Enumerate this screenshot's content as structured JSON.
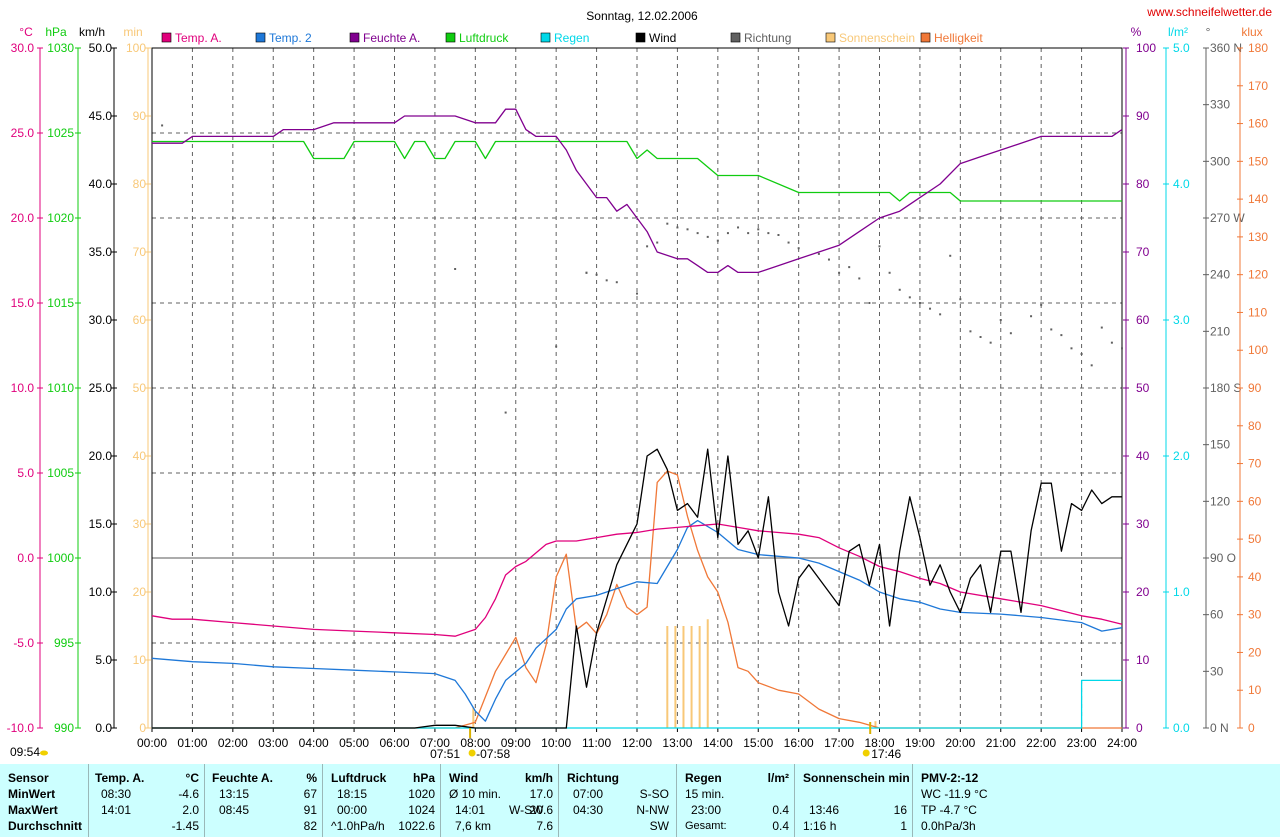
{
  "title": "Sonntag, 12.02.2006",
  "site": "www.schneifelwetter.de",
  "colors": {
    "temp": "#e0007c",
    "temp2": "#1e78d8",
    "humid": "#80008f",
    "press": "#10cc10",
    "rain": "#00d8e8",
    "wind": "#000000",
    "dir": "#606060",
    "sun": "#f8c878",
    "bright": "#f07838",
    "grid": "#606060",
    "axis": "#000000"
  },
  "units": {
    "temp": "°C",
    "press": "hPa",
    "wind": "km/h",
    "sunmin": "min",
    "humid": "%",
    "rain": "l/m²",
    "dir": "°",
    "bright": "klux"
  },
  "legend": [
    {
      "label": "Temp. A.",
      "color": "#e0007c"
    },
    {
      "label": "Temp. 2",
      "color": "#1e78d8"
    },
    {
      "label": "Feuchte A.",
      "color": "#80008f"
    },
    {
      "label": "Luftdruck",
      "color": "#10cc10"
    },
    {
      "label": "Regen",
      "color": "#00d8e8"
    },
    {
      "label": "Wind",
      "color": "#000000"
    },
    {
      "label": "Richtung",
      "color": "#606060"
    },
    {
      "label": "Sonnenschein",
      "color": "#f8c878"
    },
    {
      "label": "Helligkeit",
      "color": "#f07838"
    }
  ],
  "sunrise_label": "07:51",
  "sunset_label": "17:46",
  "sun_bar_label": "07:58",
  "time_label": "09:54",
  "chart_data": {
    "type": "line",
    "x_range": [
      0,
      24
    ],
    "x_tick_labels": [
      "00:00",
      "01:00",
      "02:00",
      "03:00",
      "04:00",
      "05:00",
      "06:00",
      "07:00",
      "08:00",
      "09:00",
      "10:00",
      "11:00",
      "12:00",
      "13:00",
      "14:00",
      "15:00",
      "16:00",
      "17:00",
      "18:00",
      "19:00",
      "20:00",
      "21:00",
      "22:00",
      "23:00",
      "24:00"
    ],
    "axes": {
      "temp": {
        "ticks": [
          "30.0",
          "25.0",
          "20.0",
          "15.0",
          "10.0",
          "5.0",
          "0.0",
          "-5.0",
          "-10.0"
        ],
        "range": [
          -10,
          30
        ]
      },
      "press": {
        "ticks": [
          "1030",
          "1025",
          "1020",
          "1015",
          "1010",
          "1005",
          "1000",
          "995",
          "990"
        ],
        "range": [
          990,
          1030
        ]
      },
      "wind": {
        "ticks": [
          "50.0",
          "45.0",
          "40.0",
          "35.0",
          "30.0",
          "25.0",
          "20.0",
          "15.0",
          "10.0",
          "5.0",
          "0.0"
        ],
        "range": [
          0,
          50
        ]
      },
      "sunmin": {
        "ticks": [
          "100",
          "90",
          "80",
          "70",
          "60",
          "50",
          "40",
          "30",
          "20",
          "10",
          "0"
        ],
        "range": [
          0,
          100
        ]
      },
      "humid": {
        "ticks": [
          "100",
          "90",
          "80",
          "70",
          "60",
          "50",
          "40",
          "30",
          "20",
          "10",
          "0"
        ],
        "range": [
          0,
          100
        ]
      },
      "rain": {
        "ticks": [
          "5.0",
          "4.0",
          "3.0",
          "2.0",
          "1.0",
          "0.0"
        ],
        "range": [
          0,
          5
        ]
      },
      "dir": {
        "ticks": [
          "360 N",
          "330",
          "300",
          "270 W",
          "240",
          "210",
          "180 S",
          "150",
          "120",
          "90  O",
          "60",
          "30",
          "0   N"
        ],
        "range": [
          0,
          360
        ]
      },
      "bright": {
        "ticks": [
          "180",
          "170",
          "160",
          "150",
          "140",
          "130",
          "120",
          "110",
          "100",
          "90",
          "80",
          "70",
          "60",
          "50",
          "40",
          "30",
          "20",
          "10",
          "0"
        ],
        "range": [
          0,
          180
        ]
      }
    },
    "series": [
      {
        "name": "Temp. A.",
        "axis": "temp",
        "x": [
          0,
          0.5,
          1,
          2,
          3,
          4,
          5,
          6,
          7,
          7.5,
          8,
          8.25,
          8.5,
          8.75,
          9,
          9.25,
          9.5,
          9.75,
          10,
          10.25,
          10.5,
          11,
          11.5,
          12,
          12.5,
          13,
          13.5,
          14,
          14.5,
          15,
          15.5,
          16,
          16.5,
          17,
          17.5,
          18,
          18.5,
          19,
          19.5,
          20,
          21,
          22,
          23,
          23.5,
          24
        ],
        "y": [
          -3.4,
          -3.6,
          -3.6,
          -3.8,
          -4.0,
          -4.2,
          -4.3,
          -4.4,
          -4.5,
          -4.6,
          -4.2,
          -3.5,
          -2.4,
          -1.0,
          -0.5,
          -0.2,
          0.3,
          0.8,
          1.0,
          1.0,
          1.0,
          1.2,
          1.4,
          1.5,
          1.7,
          1.8,
          1.9,
          2.0,
          1.8,
          1.6,
          1.5,
          1.4,
          1.2,
          0.6,
          0.1,
          -0.5,
          -0.8,
          -1.2,
          -1.5,
          -2.0,
          -2.4,
          -2.8,
          -3.4,
          -3.6,
          -3.9
        ]
      },
      {
        "name": "Temp. 2",
        "axis": "temp",
        "x": [
          0,
          1,
          2,
          3,
          4,
          5,
          6,
          7,
          7.5,
          7.75,
          8,
          8.25,
          8.5,
          8.75,
          9,
          9.25,
          9.5,
          10,
          10.25,
          10.5,
          11,
          11.5,
          12,
          12.5,
          13,
          13.25,
          13.5,
          14,
          14.5,
          15,
          15.5,
          16,
          16.5,
          17,
          17.5,
          18,
          18.5,
          19,
          19.5,
          20,
          21,
          22,
          23,
          23.5,
          24
        ],
        "y": [
          -5.9,
          -6.1,
          -6.2,
          -6.4,
          -6.5,
          -6.6,
          -6.7,
          -6.8,
          -7.2,
          -8.0,
          -9.0,
          -9.6,
          -8.3,
          -7.2,
          -6.7,
          -6.2,
          -5.3,
          -4.2,
          -3.0,
          -2.4,
          -2.2,
          -1.8,
          -1.4,
          -1.5,
          0.5,
          1.8,
          2.2,
          1.5,
          0.5,
          0.2,
          0.1,
          0.0,
          -0.3,
          -0.8,
          -1.3,
          -2.0,
          -2.4,
          -2.6,
          -3.0,
          -3.2,
          -3.3,
          -3.5,
          -3.8,
          -4.3,
          -4.1
        ]
      },
      {
        "name": "Feuchte A.",
        "axis": "humid",
        "x": [
          0,
          0.75,
          1.0,
          2,
          3,
          3.25,
          4,
          4.5,
          5,
          6,
          6.25,
          7,
          7.5,
          8,
          8.5,
          8.75,
          9,
          9.25,
          9.5,
          10,
          10.25,
          10.5,
          11,
          11.25,
          11.5,
          11.75,
          12,
          12.25,
          12.5,
          13,
          13.25,
          13.5,
          13.75,
          14,
          14.25,
          14.5,
          15,
          15.5,
          16,
          16.5,
          17,
          17.5,
          18,
          18.5,
          19,
          19.5,
          20,
          20.5,
          21,
          21.5,
          22,
          23,
          23.75,
          24
        ],
        "y": [
          86,
          86,
          87,
          87,
          87,
          88,
          88,
          89,
          89,
          89,
          90,
          90,
          90,
          89,
          89,
          91,
          91,
          88,
          87,
          87,
          85,
          82,
          78,
          78,
          76,
          77,
          75,
          73,
          70,
          69,
          69,
          68,
          67,
          67,
          68,
          67,
          67,
          68,
          69,
          70,
          71,
          73,
          75,
          76,
          78,
          80,
          83,
          84,
          85,
          86,
          87,
          87,
          87,
          88
        ]
      },
      {
        "name": "Luftdruck",
        "axis": "press",
        "x": [
          0,
          3,
          3.75,
          4,
          4.5,
          4.75,
          5,
          5.5,
          6,
          6.25,
          6.5,
          6.75,
          7,
          7.25,
          7.5,
          7.75,
          8,
          8.25,
          8.5,
          9,
          10,
          11,
          11.75,
          12,
          12.25,
          12.5,
          13,
          13.5,
          14,
          14.5,
          15,
          16,
          17,
          17.5,
          18,
          18.25,
          18.5,
          18.75,
          19,
          19.5,
          19.75,
          20,
          21,
          22,
          23,
          24
        ],
        "y": [
          1024.5,
          1024.5,
          1024.5,
          1023.5,
          1023.5,
          1023.5,
          1024.5,
          1024.5,
          1024.5,
          1023.5,
          1024.5,
          1024.5,
          1023.5,
          1023.5,
          1024.5,
          1024.5,
          1024.5,
          1023.5,
          1024.5,
          1024.5,
          1024.5,
          1024.5,
          1024.5,
          1023.5,
          1024.0,
          1023.5,
          1023.5,
          1023.5,
          1022.5,
          1022.5,
          1022.5,
          1021.5,
          1021.5,
          1021.5,
          1021.5,
          1021.5,
          1021.0,
          1021.5,
          1021.5,
          1021.5,
          1021.5,
          1021.0,
          1021.0,
          1021.0,
          1021.0,
          1021.0
        ]
      },
      {
        "name": "Wind",
        "axis": "wind",
        "x": [
          0,
          6.5,
          7.0,
          7.5,
          8.0,
          9.5,
          10.25,
          10.5,
          10.75,
          11,
          11.5,
          12,
          12.25,
          12.5,
          12.75,
          13,
          13.25,
          13.5,
          13.75,
          14,
          14.25,
          14.5,
          14.75,
          15,
          15.25,
          15.5,
          15.75,
          16,
          16.25,
          16.5,
          17,
          17.25,
          17.5,
          17.75,
          18,
          18.25,
          18.5,
          18.75,
          19,
          19.25,
          19.5,
          19.75,
          20,
          20.25,
          20.5,
          20.75,
          21,
          21.25,
          21.5,
          21.75,
          22,
          22.25,
          22.5,
          22.75,
          23,
          23.25,
          23.5,
          23.75,
          24
        ],
        "y": [
          0,
          0,
          0.2,
          0.2,
          0,
          0,
          0,
          7.5,
          3,
          7,
          12,
          15,
          20,
          20.5,
          19,
          16,
          16.5,
          15.5,
          20.5,
          14,
          20,
          13.5,
          14.5,
          12.5,
          17,
          10,
          7.5,
          11,
          12,
          11,
          9,
          13,
          13.5,
          10.5,
          13.5,
          7.5,
          13,
          17,
          14,
          10.5,
          12,
          10,
          8.5,
          11,
          12,
          8.5,
          13,
          13,
          8.5,
          14.5,
          18,
          18,
          13,
          16.5,
          16,
          17.5,
          16.5,
          17,
          17
        ]
      },
      {
        "name": "Regen",
        "axis": "rain",
        "x": [
          0,
          22.75,
          23.0,
          23.0,
          24
        ],
        "y": [
          0,
          0,
          0,
          0.35,
          0.35
        ]
      },
      {
        "name": "Helligkeit",
        "axis": "bright",
        "x": [
          0,
          7.25,
          7.5,
          8.0,
          8.5,
          9.0,
          9.25,
          9.5,
          9.75,
          10.0,
          10.25,
          10.5,
          10.75,
          11.0,
          11.25,
          11.5,
          11.75,
          12.0,
          12.25,
          12.5,
          12.75,
          13.0,
          13.25,
          13.5,
          13.75,
          14.0,
          14.25,
          14.5,
          14.75,
          15.0,
          15.5,
          16.0,
          16.5,
          17.0,
          17.5,
          18.0,
          18.25,
          24
        ],
        "y": [
          0,
          0,
          0,
          1.5,
          15,
          24,
          16,
          12,
          22,
          40,
          46,
          26,
          28,
          25,
          30,
          38,
          32,
          30,
          32,
          65,
          68,
          67,
          56,
          47,
          40,
          36,
          28,
          16,
          15,
          12,
          10,
          9,
          5,
          2.5,
          1.5,
          0,
          0,
          0
        ]
      }
    ],
    "direction_points": [
      [
        0.25,
        319
      ],
      [
        7.5,
        243
      ],
      [
        8.75,
        167
      ],
      [
        10.0,
        202
      ],
      [
        10.75,
        241
      ],
      [
        10.75,
        241
      ],
      [
        11.0,
        240
      ],
      [
        11.25,
        237
      ],
      [
        11.5,
        236
      ],
      [
        12.0,
        230
      ],
      [
        12.25,
        255
      ],
      [
        12.5,
        257
      ],
      [
        12.75,
        267
      ],
      [
        13.0,
        265
      ],
      [
        13.25,
        264
      ],
      [
        13.5,
        262
      ],
      [
        13.75,
        260
      ],
      [
        14.0,
        258
      ],
      [
        14.25,
        262
      ],
      [
        14.5,
        265
      ],
      [
        14.75,
        262
      ],
      [
        15.0,
        264
      ],
      [
        15.25,
        262
      ],
      [
        15.5,
        261
      ],
      [
        15.75,
        257
      ],
      [
        16.0,
        254
      ],
      [
        16.5,
        251
      ],
      [
        16.75,
        248
      ],
      [
        17.0,
        241
      ],
      [
        17.25,
        244
      ],
      [
        17.5,
        238
      ],
      [
        17.75,
        225
      ],
      [
        18.0,
        255
      ],
      [
        18.25,
        241
      ],
      [
        18.5,
        232
      ],
      [
        18.75,
        228
      ],
      [
        19.0,
        225
      ],
      [
        19.25,
        222
      ],
      [
        19.5,
        219
      ],
      [
        19.75,
        250
      ],
      [
        20.0,
        227
      ],
      [
        20.25,
        210
      ],
      [
        20.5,
        207
      ],
      [
        20.75,
        204
      ],
      [
        21.0,
        216
      ],
      [
        21.25,
        209
      ],
      [
        21.75,
        218
      ],
      [
        22.0,
        224
      ],
      [
        22.25,
        211
      ],
      [
        22.5,
        208
      ],
      [
        22.75,
        201
      ],
      [
        23.0,
        198
      ],
      [
        23.25,
        192
      ],
      [
        23.5,
        212
      ],
      [
        23.75,
        204
      ],
      [
        24.0,
        201
      ]
    ],
    "sunshine_bars": [
      {
        "x": 7.95,
        "min": 3
      },
      {
        "x": 12.75,
        "min": 15
      },
      {
        "x": 12.95,
        "min": 15
      },
      {
        "x": 13.15,
        "min": 15
      },
      {
        "x": 13.35,
        "min": 15
      },
      {
        "x": 13.55,
        "min": 15
      },
      {
        "x": 13.75,
        "min": 16
      },
      {
        "x": 17.9,
        "min": 1
      }
    ],
    "grid": true,
    "legend_position": "top"
  },
  "stats": {
    "sensor": {
      "header": "Sensor",
      "rows": [
        "MinWert",
        "MaxWert",
        "Durchschnitt"
      ]
    },
    "temp": {
      "header": "Temp. A.",
      "unit": "°C",
      "times": [
        "08:30",
        "14:01",
        ""
      ],
      "values": [
        "-4.6",
        "2.0",
        "-1.45"
      ]
    },
    "humid": {
      "header": "Feuchte A.",
      "unit": "%",
      "times": [
        "13:15",
        "08:45",
        ""
      ],
      "values": [
        "67",
        "91",
        "82"
      ]
    },
    "press": {
      "header": "Luftdruck",
      "unit": "hPa",
      "times": [
        "18:15",
        "00:00",
        "^1.0hPa/h"
      ],
      "values": [
        "1020",
        "1024",
        "1022.6"
      ]
    },
    "wind": {
      "header": "Wind",
      "unit": "km/h",
      "times": [
        "Ø 10 min.",
        "14:01",
        "7,6 km"
      ],
      "mids": [
        "",
        "W-SW",
        ""
      ],
      "values": [
        "17.0",
        "20.6",
        "7.6"
      ]
    },
    "dir": {
      "header": "Richtung",
      "times": [
        "07:00",
        "04:30",
        ""
      ],
      "values": [
        "S-SO",
        "N-NW",
        "SW"
      ]
    },
    "rain": {
      "header": "Regen",
      "unit": "l/m²",
      "times": [
        "15 min.",
        "23:00",
        "Gesamt:"
      ],
      "values": [
        "",
        "0.4",
        "0.4"
      ]
    },
    "sun": {
      "header": "Sonnenschein min",
      "times": [
        "",
        "13:46",
        "1:16 h"
      ],
      "values": [
        "",
        "16",
        "1"
      ]
    },
    "pmv": {
      "header": "PMV-2:-12",
      "rows": [
        "WC -11.9 °C",
        "TP -4.7 °C",
        "0.0hPa/3h"
      ]
    }
  }
}
